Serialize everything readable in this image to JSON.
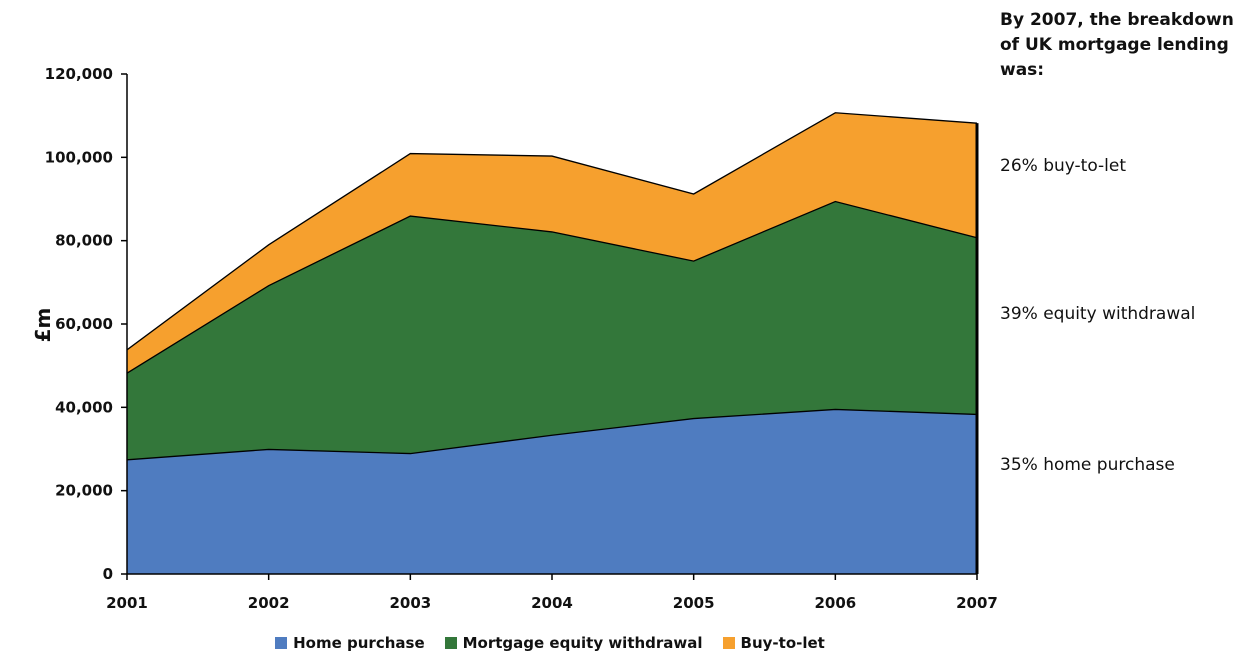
{
  "chart_data": {
    "type": "area",
    "stacked": true,
    "x": [
      "2001",
      "2002",
      "2003",
      "2004",
      "2005",
      "2006",
      "2007"
    ],
    "series": [
      {
        "name": "Home purchase",
        "color": "#4f7cc0",
        "values": [
          27400,
          29900,
          28900,
          33300,
          37300,
          39500,
          38300
        ]
      },
      {
        "name": "Mortgage equity withdrawal",
        "color": "#33773a",
        "values": [
          20800,
          39300,
          57000,
          48800,
          37800,
          49900,
          42400
        ]
      },
      {
        "name": "Buy-to-let",
        "color": "#f6a02e",
        "values": [
          5600,
          9800,
          15000,
          18200,
          16100,
          21300,
          27500
        ]
      }
    ],
    "ylabel": "£m",
    "xlabel": "",
    "ylim": [
      0,
      120000
    ],
    "yticks": [
      "0",
      "20,000",
      "40,000",
      "60,000",
      "80,000",
      "100,000",
      "120,000"
    ],
    "grid": false,
    "legend_position": "bottom"
  },
  "side_panel": {
    "heading": "By 2007, the breakdown of UK mortgage lending was:",
    "notes": [
      "26% buy-to-let",
      "39% equity withdrawal",
      "35% home purchase"
    ]
  }
}
